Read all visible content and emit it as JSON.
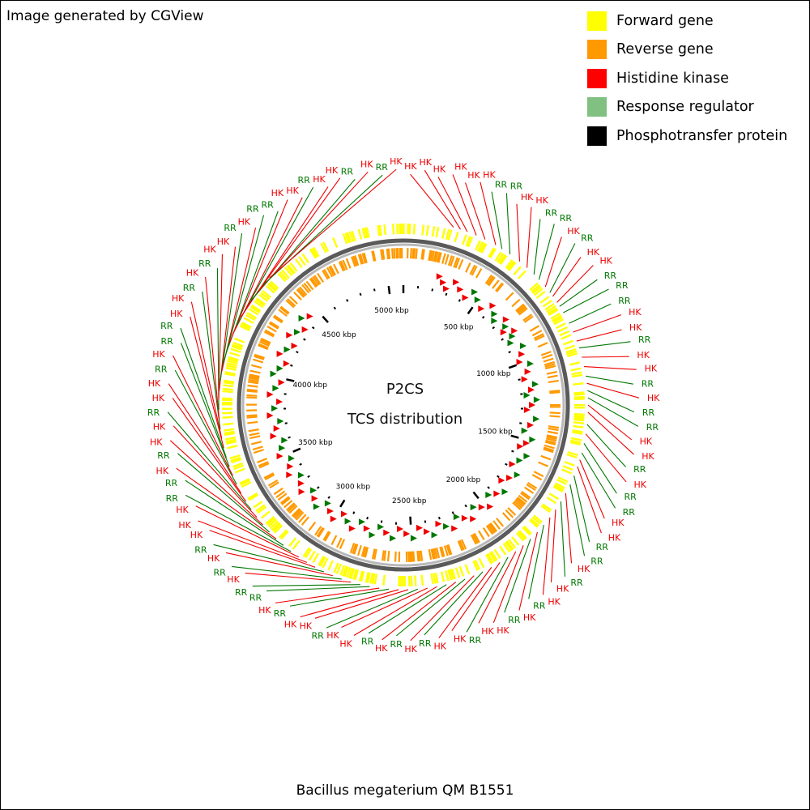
{
  "credit": "Image generated by CGView",
  "center": {
    "title": "P2CS",
    "subtitle": "TCS distribution"
  },
  "organism": "Bacillus megaterium QM B1551",
  "legend": [
    {
      "label": "Forward gene",
      "color": "#ffff00"
    },
    {
      "label": "Reverse gene",
      "color": "#ff9900"
    },
    {
      "label": "Histidine kinase",
      "color": "#ff0000"
    },
    {
      "label": "Response regulator",
      "color": "#80c080"
    },
    {
      "label": "Phosphotransfer protein",
      "color": "#000000"
    }
  ],
  "colors": {
    "hk": "#ee0000",
    "rr": "#007700",
    "backbone": "#808080"
  },
  "genome_length_kbp": 5100,
  "scale_ticks": [
    {
      "value": 500,
      "label": "500 kbp"
    },
    {
      "value": 1000,
      "label": "1000 kbp"
    },
    {
      "value": 1500,
      "label": "1500 kbp"
    },
    {
      "value": 2000,
      "label": "2000 kbp"
    },
    {
      "value": 2500,
      "label": "2500 kbp"
    },
    {
      "value": 3000,
      "label": "3000 kbp"
    },
    {
      "value": 3500,
      "label": "3500 kbp"
    },
    {
      "value": 4000,
      "label": "4000 kbp"
    },
    {
      "value": 4500,
      "label": "4500 kbp"
    },
    {
      "value": 5000,
      "label": "5000 kbp"
    }
  ],
  "gene_labels": [
    {
      "t": "HK",
      "p": 105
    },
    {
      "t": "HK",
      "p": 120
    },
    {
      "t": "HK",
      "p": 135
    },
    {
      "t": "HK",
      "p": 155
    },
    {
      "t": "HK",
      "p": 175
    },
    {
      "t": "HK",
      "p": 200
    },
    {
      "t": "RR",
      "p": 215
    },
    {
      "t": "RR",
      "p": 235
    },
    {
      "t": "HK",
      "p": 260
    },
    {
      "t": "HK",
      "p": 280
    },
    {
      "t": "RR",
      "p": 300
    },
    {
      "t": "RR",
      "p": 315
    },
    {
      "t": "HK",
      "p": 335
    },
    {
      "t": "RR",
      "p": 350
    },
    {
      "t": "HK",
      "p": 360
    },
    {
      "t": "HK",
      "p": 375
    },
    {
      "t": "RR",
      "p": 385
    },
    {
      "t": "RR",
      "p": 400
    },
    {
      "t": "RR",
      "p": 425
    },
    {
      "t": "HK",
      "p": 445
    },
    {
      "t": "HK",
      "p": 465
    },
    {
      "t": "RR",
      "p": 480
    },
    {
      "t": "HK",
      "p": 500
    },
    {
      "t": "HK",
      "p": 520
    },
    {
      "t": "RR",
      "p": 540
    },
    {
      "t": "HK",
      "p": 555
    },
    {
      "t": "RR",
      "p": 570
    },
    {
      "t": "RR",
      "p": 585
    },
    {
      "t": "HK",
      "p": 600
    },
    {
      "t": "HK",
      "p": 615
    },
    {
      "t": "RR",
      "p": 640
    },
    {
      "t": "HK",
      "p": 660
    },
    {
      "t": "RR",
      "p": 680
    },
    {
      "t": "RR",
      "p": 700
    },
    {
      "t": "HK",
      "p": 715
    },
    {
      "t": "HK",
      "p": 730
    },
    {
      "t": "RR",
      "p": 750
    },
    {
      "t": "RR",
      "p": 770
    },
    {
      "t": "HK",
      "p": 790
    },
    {
      "t": "RR",
      "p": 810
    },
    {
      "t": "HK",
      "p": 830
    },
    {
      "t": "HK",
      "p": 850
    },
    {
      "t": "RR",
      "p": 870
    },
    {
      "t": "HK",
      "p": 890
    },
    {
      "t": "RR",
      "p": 910
    },
    {
      "t": "HK",
      "p": 930
    },
    {
      "t": "HK",
      "p": 950
    },
    {
      "t": "RR",
      "p": 970
    },
    {
      "t": "HK",
      "p": 990
    },
    {
      "t": "HK",
      "p": 1010
    },
    {
      "t": "RR",
      "p": 1030
    },
    {
      "t": "HK",
      "p": 1050
    },
    {
      "t": "RR",
      "p": 1070
    },
    {
      "t": "HK",
      "p": 1090
    },
    {
      "t": "RR",
      "p": 1110
    },
    {
      "t": "HK",
      "p": 1130
    },
    {
      "t": "HK",
      "p": 1150
    },
    {
      "t": "RR",
      "p": 1170
    },
    {
      "t": "HK",
      "p": 1190
    },
    {
      "t": "HK",
      "p": 1210
    },
    {
      "t": "RR",
      "p": 1230
    },
    {
      "t": "HK",
      "p": 1250
    },
    {
      "t": "RR",
      "p": 1270
    },
    {
      "t": "RR",
      "p": 1290
    },
    {
      "t": "HK",
      "p": 1310
    },
    {
      "t": "RR",
      "p": 1330
    },
    {
      "t": "HK",
      "p": 1350
    },
    {
      "t": "RR",
      "p": 1370
    },
    {
      "t": "HK",
      "p": 1390
    },
    {
      "t": "HK",
      "p": 1410
    },
    {
      "t": "HK",
      "p": 1430
    },
    {
      "t": "RR",
      "p": 1450
    },
    {
      "t": "RR",
      "p": 1470
    },
    {
      "t": "HK",
      "p": 1490
    },
    {
      "t": "RR",
      "p": 1510
    },
    {
      "t": "HK",
      "p": 1530
    },
    {
      "t": "HK",
      "p": 1550
    },
    {
      "t": "RR",
      "p": 1570
    },
    {
      "t": "HK",
      "p": 1590
    },
    {
      "t": "HK",
      "p": 1610
    },
    {
      "t": "RR",
      "p": 1630
    },
    {
      "t": "HK",
      "p": 1650
    },
    {
      "t": "RR",
      "p": 1670
    },
    {
      "t": "RR",
      "p": 1690
    },
    {
      "t": "HK",
      "p": 1710
    },
    {
      "t": "HK",
      "p": 1730
    },
    {
      "t": "RR",
      "p": 1750
    },
    {
      "t": "HK",
      "p": 1770
    },
    {
      "t": "RR",
      "p": 1790
    },
    {
      "t": "HK",
      "p": 1810
    },
    {
      "t": "HK",
      "p": 1830
    },
    {
      "t": "RR",
      "p": 1850
    },
    {
      "t": "HK",
      "p": 1870
    },
    {
      "t": "RR",
      "p": 1890
    },
    {
      "t": "RR",
      "p": 1910
    },
    {
      "t": "HK",
      "p": 1930
    },
    {
      "t": "HK",
      "p": 1950
    },
    {
      "t": "RR",
      "p": 1970
    },
    {
      "t": "HK",
      "p": 1990
    },
    {
      "t": "HK",
      "p": 2010
    },
    {
      "t": "RR",
      "p": 2030
    },
    {
      "t": "HK",
      "p": 2050
    },
    {
      "t": "RR",
      "p": 2070
    },
    {
      "t": "HK",
      "p": 2090
    }
  ]
}
